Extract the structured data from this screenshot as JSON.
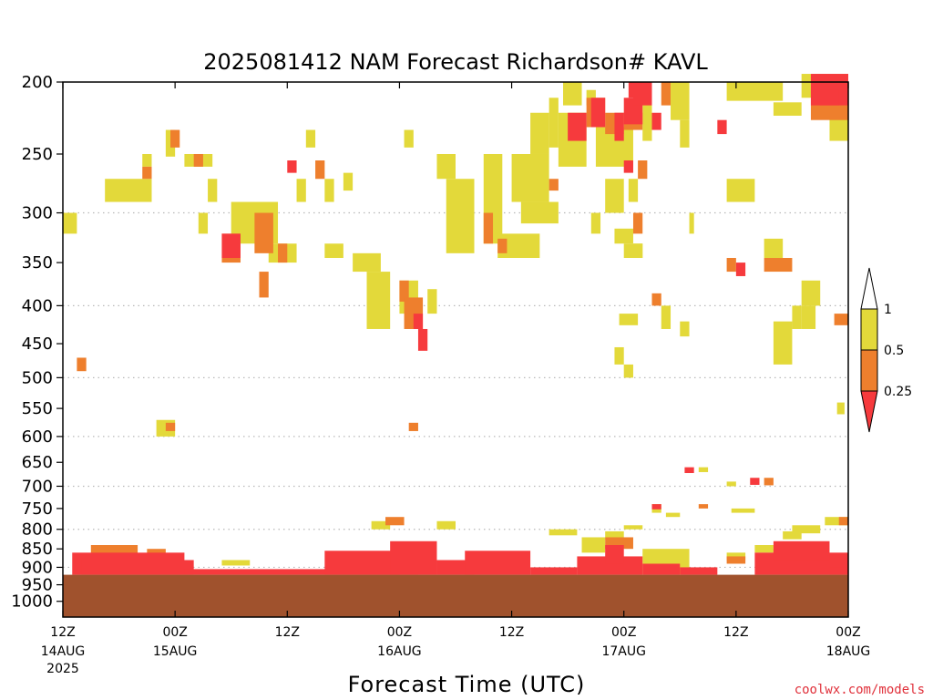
{
  "chart_data": {
    "type": "heatmap",
    "title": "2025081412 NAM Forecast Richardson# KAVL",
    "xlabel": "Forecast Time (UTC)",
    "ylabel": "",
    "credit": "coolwx.com/models",
    "x_unit": "forecast hour",
    "xlim": [
      0,
      84
    ],
    "y_scale": "log-pressure",
    "ylim": [
      1050,
      200
    ],
    "y_ticks": [
      200,
      250,
      300,
      350,
      400,
      450,
      500,
      550,
      600,
      650,
      700,
      750,
      800,
      850,
      900,
      950,
      1000
    ],
    "grid": true,
    "x_ticks": [
      {
        "x": 0,
        "label": "12Z",
        "date": "14AUG",
        "year": "2025"
      },
      {
        "x": 12,
        "label": "00Z",
        "date": "15AUG",
        "year": ""
      },
      {
        "x": 24,
        "label": "12Z",
        "date": "",
        "year": ""
      },
      {
        "x": 36,
        "label": "00Z",
        "date": "16AUG",
        "year": ""
      },
      {
        "x": 48,
        "label": "12Z",
        "date": "",
        "year": ""
      },
      {
        "x": 60,
        "label": "00Z",
        "date": "17AUG",
        "year": ""
      },
      {
        "x": 72,
        "label": "12Z",
        "date": "",
        "year": ""
      },
      {
        "x": 84,
        "label": "00Z",
        "date": "18AUG",
        "year": ""
      }
    ],
    "colorbar": {
      "levels": [
        "1",
        "0.5",
        "0.25"
      ],
      "colors": {
        "gt1": "#ffffff",
        "c05_1": "#e3d93a",
        "c025_05": "#ee7f2d",
        "lt025": "#f63a3d"
      },
      "placement": "right"
    },
    "ground": {
      "color": "#a0522d",
      "surface_pressure": 921
    },
    "series": [
      {
        "category": "0.5-1",
        "color": "#e3d93a",
        "cells": [
          [
            0,
            1.5,
            300,
            320
          ],
          [
            11,
            12,
            232,
            252
          ],
          [
            8.5,
            9.5,
            250,
            260
          ],
          [
            4.5,
            9.5,
            270,
            290
          ],
          [
            13,
            16,
            250,
            260
          ],
          [
            15.5,
            16.5,
            270,
            290
          ],
          [
            14.5,
            15.5,
            300,
            320
          ],
          [
            18,
            23,
            290,
            330
          ],
          [
            22,
            25,
            330,
            350
          ],
          [
            25,
            26,
            270,
            290
          ],
          [
            26,
            27,
            232,
            245
          ],
          [
            28,
            29,
            270,
            290
          ],
          [
            30,
            31,
            265,
            280
          ],
          [
            28,
            30,
            330,
            345
          ],
          [
            31,
            34,
            340,
            360
          ],
          [
            32.5,
            35,
            360,
            430
          ],
          [
            36,
            38,
            370,
            410
          ],
          [
            39,
            40,
            380,
            410
          ],
          [
            36.5,
            37.5,
            232,
            245
          ],
          [
            40,
            42,
            250,
            270
          ],
          [
            41,
            44,
            270,
            340
          ],
          [
            45,
            47,
            250,
            330
          ],
          [
            46.5,
            51,
            320,
            345
          ],
          [
            48,
            52,
            250,
            290
          ],
          [
            49,
            53,
            290,
            310
          ],
          [
            50,
            52,
            220,
            250
          ],
          [
            52,
            53,
            210,
            245
          ],
          [
            53,
            56,
            220,
            260
          ],
          [
            53.5,
            55.5,
            200,
            215
          ],
          [
            56,
            57,
            205,
            215
          ],
          [
            57,
            61,
            230,
            260
          ],
          [
            58,
            60,
            270,
            300
          ],
          [
            60.5,
            61.5,
            270,
            290
          ],
          [
            56.5,
            57.5,
            300,
            320
          ],
          [
            59,
            61,
            315,
            330
          ],
          [
            59,
            60,
            455,
            480
          ],
          [
            60,
            61,
            480,
            500
          ],
          [
            62,
            63,
            200,
            240
          ],
          [
            65,
            67,
            200,
            225
          ],
          [
            66,
            67,
            225,
            245
          ],
          [
            71,
            77,
            200,
            212
          ],
          [
            76,
            79,
            213,
            222
          ],
          [
            79,
            84,
            195,
            210
          ],
          [
            82,
            84,
            215,
            240
          ],
          [
            75,
            77,
            325,
            345
          ],
          [
            76,
            78,
            420,
            480
          ],
          [
            78,
            79,
            400,
            430
          ],
          [
            79,
            81,
            370,
            400
          ],
          [
            71,
            74,
            270,
            290
          ],
          [
            61,
            62,
            330,
            345
          ],
          [
            64,
            65,
            400,
            430
          ],
          [
            66,
            67,
            420,
            440
          ],
          [
            59.5,
            61.5,
            410,
            425
          ],
          [
            60,
            62,
            330,
            345
          ],
          [
            67,
            67.5,
            300,
            320
          ],
          [
            10,
            12,
            570,
            600
          ],
          [
            82.8,
            83.6,
            540,
            560
          ],
          [
            79,
            80.5,
            400,
            430
          ],
          [
            68,
            69,
            660,
            670
          ],
          [
            71,
            72,
            690,
            700
          ],
          [
            63,
            64,
            740,
            760
          ],
          [
            64.5,
            66,
            760,
            770
          ],
          [
            71.5,
            74,
            750,
            760
          ],
          [
            81.5,
            84,
            770,
            790
          ],
          [
            17,
            20,
            880,
            895
          ],
          [
            33,
            35,
            780,
            800
          ],
          [
            40,
            42,
            780,
            800
          ],
          [
            52,
            55,
            800,
            815
          ],
          [
            58,
            60,
            805,
            825
          ],
          [
            60,
            62,
            790,
            800
          ],
          [
            55.5,
            58,
            820,
            860
          ],
          [
            62,
            67,
            850,
            920
          ],
          [
            71,
            73,
            860,
            880
          ],
          [
            74,
            76,
            840,
            860
          ],
          [
            78,
            81,
            790,
            810
          ],
          [
            77,
            79,
            805,
            825
          ]
        ]
      },
      {
        "category": "0.25-0.5",
        "color": "#ee7f2d",
        "cells": [
          [
            1.5,
            2.5,
            470,
            490
          ],
          [
            8.5,
            9.5,
            260,
            270
          ],
          [
            11.5,
            12.5,
            232,
            245
          ],
          [
            14,
            15,
            250,
            260
          ],
          [
            20.5,
            22.5,
            300,
            340
          ],
          [
            17,
            19,
            320,
            350
          ],
          [
            21,
            22,
            360,
            390
          ],
          [
            23,
            24,
            330,
            350
          ],
          [
            27,
            28,
            255,
            270
          ],
          [
            36,
            37,
            370,
            395
          ],
          [
            36.5,
            38.5,
            390,
            430
          ],
          [
            37,
            38,
            575,
            590
          ],
          [
            11,
            12,
            575,
            590
          ],
          [
            34.5,
            36.5,
            770,
            790
          ],
          [
            45,
            46,
            300,
            330
          ],
          [
            46.5,
            47.5,
            325,
            340
          ],
          [
            52,
            53,
            270,
            280
          ],
          [
            56,
            58,
            210,
            230
          ],
          [
            58,
            60,
            220,
            235
          ],
          [
            60,
            62,
            220,
            232
          ],
          [
            61.5,
            62.5,
            255,
            270
          ],
          [
            64,
            65,
            200,
            215
          ],
          [
            61,
            62,
            300,
            320
          ],
          [
            63,
            64,
            385,
            400
          ],
          [
            71,
            72,
            345,
            360
          ],
          [
            75,
            78,
            345,
            360
          ],
          [
            80,
            84,
            205,
            225
          ],
          [
            82.5,
            84,
            410,
            425
          ],
          [
            83,
            84,
            770,
            790
          ],
          [
            75,
            76,
            682,
            698
          ],
          [
            68,
            69,
            740,
            750
          ],
          [
            3,
            8,
            840,
            870
          ],
          [
            9,
            11,
            850,
            870
          ],
          [
            58,
            61,
            820,
            850
          ],
          [
            71,
            73,
            870,
            890
          ],
          [
            76,
            80,
            850,
            900
          ]
        ]
      },
      {
        "category": "<0.25",
        "color": "#f63a3d",
        "cells": [
          [
            17,
            19,
            320,
            345
          ],
          [
            24,
            25,
            255,
            265
          ],
          [
            37.5,
            38.5,
            410,
            430
          ],
          [
            38,
            39,
            430,
            460
          ],
          [
            54,
            56,
            220,
            240
          ],
          [
            56.5,
            58,
            210,
            230
          ],
          [
            59,
            60,
            220,
            240
          ],
          [
            60,
            62,
            210,
            228
          ],
          [
            60,
            61,
            255,
            265
          ],
          [
            60.5,
            61.5,
            200,
            210
          ],
          [
            61,
            63,
            200,
            215
          ],
          [
            63,
            64,
            220,
            232
          ],
          [
            70,
            71,
            225,
            235
          ],
          [
            72,
            73,
            350,
            365
          ],
          [
            73.5,
            74.5,
            682,
            697
          ],
          [
            66.5,
            67.5,
            660,
            672
          ],
          [
            63,
            64,
            740,
            752
          ],
          [
            80,
            84,
            195,
            215
          ],
          [
            81,
            83,
            205,
            215
          ],
          [
            1,
            13,
            860,
            921
          ],
          [
            2,
            14,
            880,
            921
          ],
          [
            13,
            36,
            905,
            921
          ],
          [
            28,
            38,
            855,
            921
          ],
          [
            35,
            40,
            830,
            921
          ],
          [
            40,
            44,
            880,
            921
          ],
          [
            43,
            50,
            855,
            921
          ],
          [
            50,
            55,
            900,
            921
          ],
          [
            55,
            62,
            870,
            921
          ],
          [
            58,
            60,
            840,
            890
          ],
          [
            62,
            66,
            890,
            921
          ],
          [
            66,
            70,
            900,
            921
          ],
          [
            74,
            84,
            860,
            921
          ],
          [
            76,
            82,
            830,
            880
          ],
          [
            82,
            84,
            900,
            921
          ]
        ]
      }
    ]
  }
}
